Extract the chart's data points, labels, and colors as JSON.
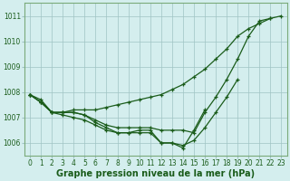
{
  "lines": [
    {
      "x": [
        0,
        1,
        2,
        3,
        4,
        5,
        6,
        7,
        8,
        9,
        10,
        11,
        12,
        13,
        14,
        15,
        16,
        17,
        18,
        19,
        20,
        21,
        22,
        23
      ],
      "y": [
        1007.9,
        1007.7,
        1007.2,
        1007.2,
        1007.3,
        1007.3,
        1007.3,
        1007.4,
        1007.5,
        1007.6,
        1007.7,
        1007.8,
        1007.9,
        1008.1,
        1008.3,
        1008.6,
        1008.9,
        1009.3,
        1009.7,
        1010.2,
        1010.5,
        1010.7,
        1010.9,
        1011.0
      ]
    },
    {
      "x": [
        0,
        1,
        2,
        3,
        4,
        5,
        6,
        7,
        8,
        9,
        10,
        11,
        12,
        13,
        14,
        15,
        16,
        17,
        18,
        19,
        20,
        21,
        22
      ],
      "y": [
        1007.9,
        1007.6,
        1007.2,
        1007.2,
        1007.2,
        1007.1,
        1006.9,
        1006.7,
        1006.6,
        1006.6,
        1006.6,
        1006.6,
        1006.5,
        1006.5,
        1006.5,
        1006.4,
        1007.2,
        1007.8,
        1008.5,
        1009.3,
        1010.2,
        1010.8,
        1010.9
      ]
    },
    {
      "x": [
        0,
        1,
        2,
        3,
        4,
        5,
        6,
        7,
        8,
        9,
        10,
        11,
        12,
        13,
        14,
        15,
        16,
        17,
        18,
        19
      ],
      "y": [
        1007.9,
        1007.6,
        1007.2,
        1007.2,
        1007.2,
        1007.1,
        1006.8,
        1006.6,
        1006.4,
        1006.4,
        1006.5,
        1006.5,
        1006.0,
        1006.0,
        1005.9,
        1006.1,
        1006.6,
        1007.2,
        1007.8,
        1008.5
      ]
    },
    {
      "x": [
        0,
        1,
        2,
        3,
        4,
        5,
        6,
        7,
        8,
        9,
        10,
        11,
        12,
        13,
        14,
        15,
        16
      ],
      "y": [
        1007.9,
        1007.6,
        1007.2,
        1007.1,
        1007.0,
        1006.9,
        1006.7,
        1006.5,
        1006.4,
        1006.4,
        1006.4,
        1006.4,
        1006.0,
        1006.0,
        1005.8,
        1006.5,
        1007.3
      ]
    }
  ],
  "line_color": "#1a5c1a",
  "marker": "+",
  "markersize": 3.5,
  "linewidth": 0.9,
  "markeredgewidth": 0.9,
  "xlabel": "Graphe pression niveau de la mer (hPa)",
  "xlabel_fontsize": 7,
  "bg_color": "#d4eeee",
  "grid_color": "#a0c4c4",
  "ylim": [
    1005.5,
    1011.5
  ],
  "yticks": [
    1006,
    1007,
    1008,
    1009,
    1010,
    1011
  ],
  "xticks": [
    0,
    1,
    2,
    3,
    4,
    5,
    6,
    7,
    8,
    9,
    10,
    11,
    12,
    13,
    14,
    15,
    16,
    17,
    18,
    19,
    20,
    21,
    22,
    23
  ],
  "tick_fontsize": 5.5,
  "tick_color": "#1a5c1a",
  "spine_color": "#7aaa7a"
}
